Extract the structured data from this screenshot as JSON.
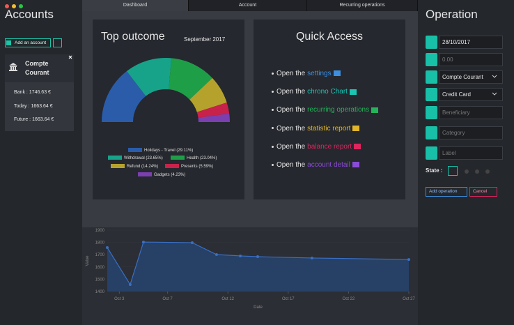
{
  "window": {
    "sidebar": {
      "title": "Accounts",
      "add_button": "Add an account",
      "account": {
        "name": "Compte Courant",
        "lines": [
          "Bank : 1746.63 €",
          "Today : 1663.64 €",
          "Future : 1663.64 €"
        ]
      }
    },
    "tabs": [
      "Dashboard",
      "Account",
      "Recurring operations"
    ],
    "top_outcome": {
      "title": "Top outcome",
      "period": "September 2017"
    },
    "quick_access": {
      "title": "Quick Access",
      "items": [
        {
          "prefix": "Open the",
          "link": "settings",
          "color": "#3d8fe0"
        },
        {
          "prefix": "Open the",
          "link": "chrono Chart",
          "color": "#1bc5b4"
        },
        {
          "prefix": "Open the",
          "link": "recurring operations",
          "color": "#24b35a"
        },
        {
          "prefix": "Open the",
          "link": "statistic report",
          "color": "#e2b62a"
        },
        {
          "prefix": "Open the",
          "link": "balance report",
          "color": "#e0245e"
        },
        {
          "prefix": "Open the",
          "link": "account detail",
          "color": "#8a4bd8"
        }
      ]
    },
    "operation": {
      "title": "Operation",
      "date": "28/10/2017",
      "amount_placeholder": "0.00",
      "account": "Compte Courant",
      "payment": "Credit Card",
      "beneficiary_placeholder": "Beneficiary",
      "category_placeholder": "Category",
      "label_placeholder": "Label",
      "state_label": "State :",
      "add_button": "Add operation",
      "cancel_button": "Cancel"
    }
  },
  "chart_data": [
    {
      "type": "pie",
      "half": true,
      "categories": [
        "Holidays - Travel (29.11%)",
        "Withdrawal (23.65%)",
        "Health (23.04%)",
        "Refund (14.24%)",
        "Presents (5.59%)",
        "Gadgets (4.23%)"
      ],
      "values": [
        29.11,
        23.65,
        23.04,
        14.24,
        5.59,
        4.23
      ],
      "colors": [
        "#2a5caa",
        "#17a38a",
        "#1f9e48",
        "#b5a22d",
        "#c8224a",
        "#7b3fb0"
      ]
    },
    {
      "type": "line",
      "fill": true,
      "color": "#3a6fc4",
      "xlabel": "Date",
      "ylabel": "Value",
      "x": [
        2,
        3.9,
        5.0,
        9.04,
        11.06,
        13.03,
        14.47,
        18.97,
        27
      ],
      "values": [
        1758,
        1457,
        1803,
        1798,
        1701,
        1690,
        1684,
        1673,
        1661
      ],
      "xlim": [
        2,
        27
      ],
      "ylim": [
        1400,
        1900
      ],
      "xticks": [
        {
          "value": 3,
          "label": "Oct 3"
        },
        {
          "value": 7,
          "label": "Oct 7"
        },
        {
          "value": 12,
          "label": "Oct 12"
        },
        {
          "value": 17,
          "label": "Oct 17"
        },
        {
          "value": 22,
          "label": "Oct 22"
        },
        {
          "value": 27,
          "label": "Oct 27"
        }
      ],
      "yticks": [
        1400,
        1500,
        1600,
        1700,
        1800,
        1900
      ]
    }
  ]
}
